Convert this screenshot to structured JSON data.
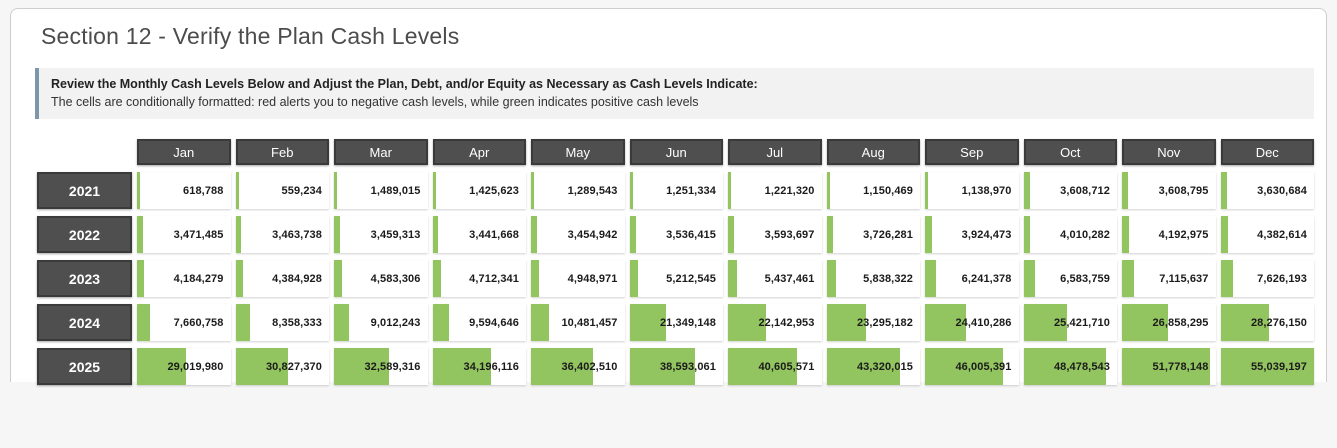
{
  "page": {
    "title": "Section 12 - Verify the Plan Cash Levels"
  },
  "notice": {
    "line1": "Review the Monthly Cash Levels Below and Adjust the Plan, Debt, and/or Equity as Necessary as Cash Levels Indicate:",
    "line2": "The cells are conditionally formatted: red alerts you to negative cash levels, while green indicates positive cash levels"
  },
  "colors": {
    "positive_bar_green": "#92c45f",
    "negative_alert_red": "#d9534f",
    "header_bg": "#4f4f4f",
    "header_border": "#3a3a3a",
    "notice_accent": "#7d97aa"
  },
  "chart_data": {
    "type": "table",
    "title": "Monthly Cash Levels by Year",
    "columns": [
      "Jan",
      "Feb",
      "Mar",
      "Apr",
      "May",
      "Jun",
      "Jul",
      "Aug",
      "Sep",
      "Oct",
      "Nov",
      "Dec"
    ],
    "series": [
      {
        "name": "2021",
        "values": [
          618788,
          559234,
          1489015,
          1425623,
          1289543,
          1251334,
          1221320,
          1150469,
          1138970,
          3608712,
          3608795,
          3630684
        ]
      },
      {
        "name": "2022",
        "values": [
          3471485,
          3463738,
          3459313,
          3441668,
          3454942,
          3536415,
          3593697,
          3726281,
          3924473,
          4010282,
          4192975,
          4382614
        ]
      },
      {
        "name": "2023",
        "values": [
          4184279,
          4384928,
          4583306,
          4712341,
          4948971,
          5212545,
          5437461,
          5838322,
          6241378,
          6583759,
          7115637,
          7626193
        ]
      },
      {
        "name": "2024",
        "values": [
          7660758,
          8358333,
          9012243,
          9594646,
          10481457,
          21349148,
          22142953,
          23295182,
          24410286,
          25421710,
          26858295,
          28276150
        ]
      },
      {
        "name": "2025",
        "values": [
          29019980,
          30827370,
          32589316,
          34196116,
          36402510,
          38593061,
          40605571,
          43320015,
          46005391,
          48478543,
          51778148,
          55039197
        ]
      }
    ],
    "bar_scale_max": 55039197,
    "legend_position": "none",
    "grid": false
  }
}
